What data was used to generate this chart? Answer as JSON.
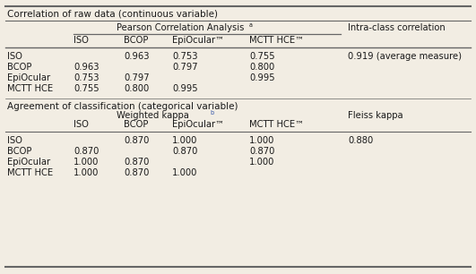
{
  "title1": "Correlation of raw data (continuous variable)",
  "title2": "Agreement of classification (categorical variable)",
  "pearson_header": "Pearson Correlation Analysis",
  "pearson_superscript": "a",
  "intraclass_header": "Intra-class correlation",
  "weighted_header": "Weighted kappa",
  "weighted_superscript": "b",
  "fleiss_header": "Fleiss kappa",
  "col_headers": [
    "ISO",
    "BCOP",
    "EpiOcular™",
    "MCTT HCE™"
  ],
  "row_headers1": [
    "ISO",
    "BCOP",
    "EpiOcular",
    "MCTT HCE"
  ],
  "data1": [
    [
      "",
      "0.963",
      "0.753",
      "0.755"
    ],
    [
      "0.963",
      "",
      "0.797",
      "0.800"
    ],
    [
      "0.753",
      "0.797",
      "",
      "0.995"
    ],
    [
      "0.755",
      "0.800",
      "0.995",
      ""
    ]
  ],
  "intraclass_value": "0.919 (average measure)",
  "row_headers2": [
    "ISO",
    "BCOP",
    "EpiOcular",
    "MCTT HCE"
  ],
  "data2": [
    [
      "",
      "0.870",
      "1.000",
      "1.000"
    ],
    [
      "0.870",
      "",
      "0.870",
      "0.870"
    ],
    [
      "1.000",
      "0.870",
      "",
      "1.000"
    ],
    [
      "1.000",
      "0.870",
      "1.000",
      ""
    ]
  ],
  "fleiss_value": "0.880",
  "bg_color": "#f2ede3",
  "text_color": "#1a1a1a",
  "line_color": "#666666",
  "font_size": 7.2,
  "font_family": "DejaVu Sans"
}
